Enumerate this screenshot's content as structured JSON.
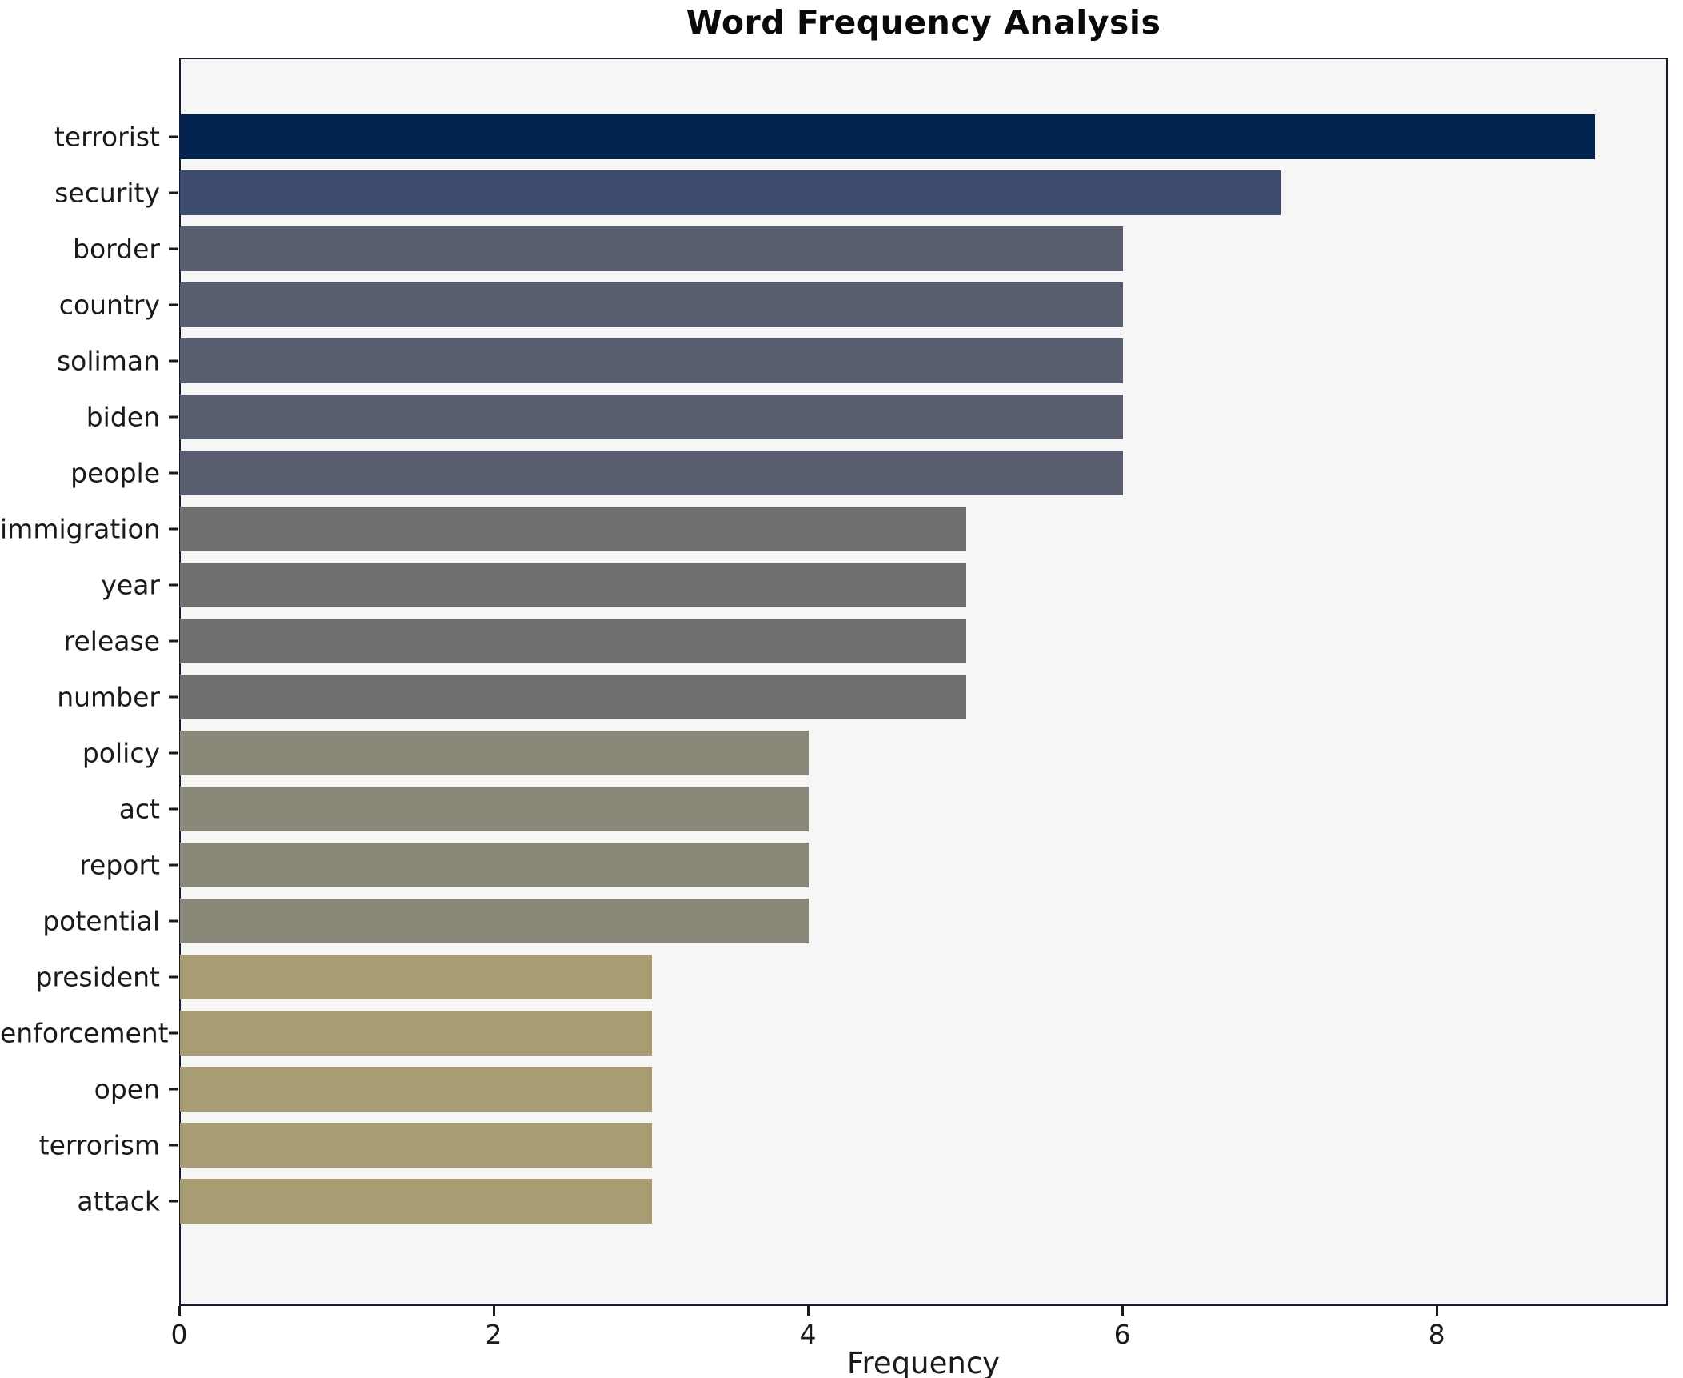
{
  "title": "Word Frequency Analysis",
  "chart_data": {
    "type": "bar",
    "orientation": "horizontal",
    "title": "Word Frequency Analysis",
    "xlabel": "Frequency",
    "ylabel": "",
    "categories": [
      "terrorist",
      "security",
      "border",
      "country",
      "soliman",
      "biden",
      "people",
      "immigration",
      "year",
      "release",
      "number",
      "policy",
      "act",
      "report",
      "potential",
      "president",
      "enforcement",
      "open",
      "terrorism",
      "attack"
    ],
    "values": [
      9,
      7,
      6,
      6,
      6,
      6,
      6,
      5,
      5,
      5,
      5,
      4,
      4,
      4,
      4,
      3,
      3,
      3,
      3,
      3
    ],
    "bar_colors": [
      "#02244e",
      "#3d4b6e",
      "#575d6e",
      "#575d6e",
      "#575d6e",
      "#575d6e",
      "#575d6e",
      "#6f6f70",
      "#6f6f70",
      "#6f6f70",
      "#6f6f70",
      "#8a8878",
      "#8a8878",
      "#8a8878",
      "#8a8878",
      "#a89d72",
      "#a89d72",
      "#a89d72",
      "#a89d72",
      "#a89d72"
    ],
    "xticks": [
      0,
      2,
      4,
      6,
      8
    ],
    "xlim": [
      0,
      9.47
    ],
    "grid": false,
    "legend": null,
    "colors": {
      "figure_background": "#ffffff",
      "plot_background": "#f6f6f6",
      "spine": "#161b2c",
      "text": "#1a1a1a"
    }
  }
}
